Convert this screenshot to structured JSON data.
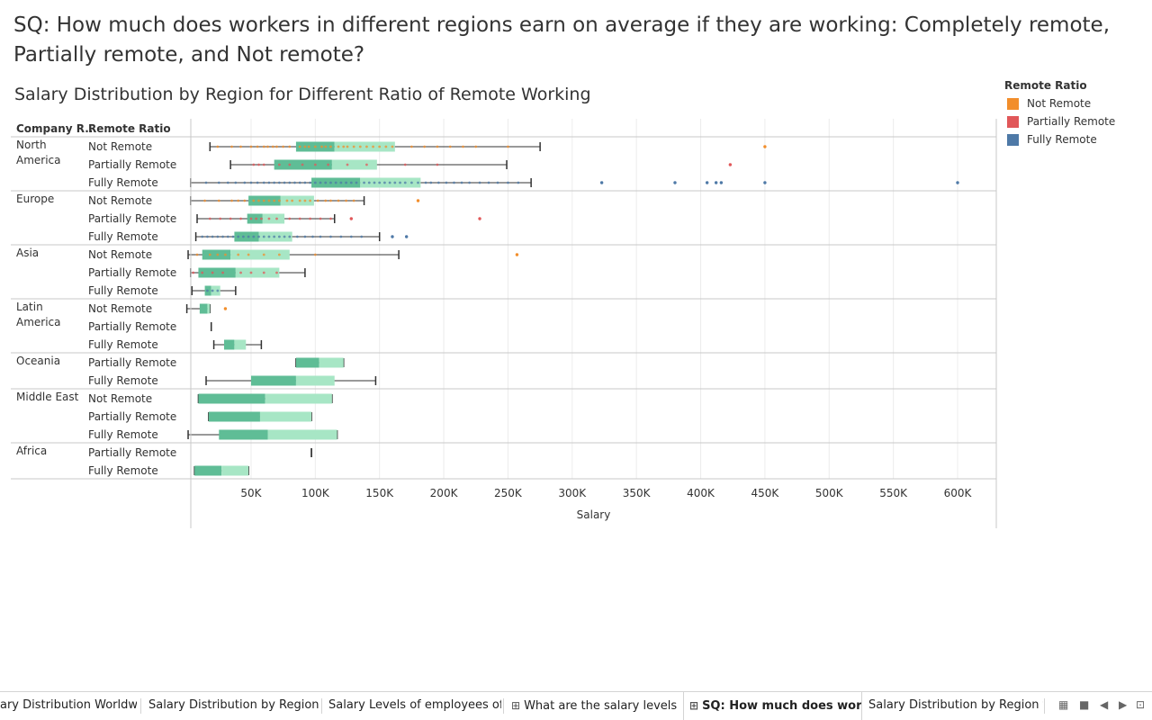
{
  "page": {
    "question": "SQ: How much does workers in different regions earn on average if they are working: Completely remote, Partially remote, and Not remote?",
    "sheet_title": "Salary Distribution by Region for Different Ratio of Remote Working"
  },
  "legend": {
    "title": "Remote Ratio",
    "items": [
      {
        "label": "Not Remote",
        "color": "#f28e2b"
      },
      {
        "label": "Partially Remote",
        "color": "#e15759"
      },
      {
        "label": "Fully Remote",
        "color": "#4e79a7"
      }
    ]
  },
  "colors": {
    "box_lower": "#5fbd96",
    "box_upper": "#a7e6c5",
    "whisker": "#333333",
    "grid": "#ececec",
    "separator": "#c8c8c8"
  },
  "chart_data": {
    "type": "boxplot",
    "title": "Salary Distribution by Region for Different Ratio of Remote Working",
    "row_headers": [
      "Company R..",
      "Remote Ratio"
    ],
    "xlabel": "Salary",
    "xlim": [
      0,
      630000
    ],
    "xticks": [
      50000,
      100000,
      150000,
      200000,
      250000,
      300000,
      350000,
      400000,
      450000,
      500000,
      550000,
      600000
    ],
    "xtick_labels": [
      "50K",
      "100K",
      "150K",
      "200K",
      "250K",
      "300K",
      "350K",
      "400K",
      "450K",
      "500K",
      "550K",
      "600K"
    ],
    "grid": true,
    "regions": [
      {
        "name": "North America",
        "rows": [
          {
            "ratio": "Not Remote",
            "min": 18000,
            "q1": 85000,
            "median": 115000,
            "q3": 162000,
            "max": 275000,
            "points": [
              24000,
              35000,
              42000,
              50000,
              55000,
              60000,
              63000,
              67000,
              70000,
              75000,
              80000,
              88000,
              92000,
              95000,
              100000,
              105000,
              108000,
              112000,
              118000,
              122000,
              125000,
              130000,
              135000,
              140000,
              145000,
              150000,
              155000,
              160000,
              175000,
              185000,
              195000,
              205000,
              215000,
              225000,
              250000
            ],
            "outliers": [
              450000
            ]
          },
          {
            "ratio": "Partially Remote",
            "min": 34000,
            "q1": 68000,
            "median": 113000,
            "q3": 148000,
            "max": 249000,
            "points": [
              52000,
              56000,
              60000,
              72000,
              80000,
              90000,
              100000,
              110000,
              125000,
              140000,
              170000,
              195000
            ],
            "outliers": [
              423000
            ]
          },
          {
            "ratio": "Fully Remote",
            "min": 3000,
            "q1": 97000,
            "median": 135000,
            "q3": 182000,
            "max": 268000,
            "points": [
              15000,
              25000,
              32000,
              38000,
              45000,
              50000,
              55000,
              60000,
              64000,
              68000,
              72000,
              76000,
              80000,
              84000,
              88000,
              92000,
              96000,
              100000,
              104000,
              108000,
              112000,
              116000,
              120000,
              124000,
              128000,
              132000,
              138000,
              142000,
              146000,
              150000,
              154000,
              158000,
              162000,
              166000,
              170000,
              175000,
              180000,
              186000,
              190000,
              196000,
              202000,
              208000,
              214000,
              220000,
              228000,
              235000,
              242000,
              250000,
              258000
            ],
            "outliers": [
              323000,
              380000,
              405000,
              412000,
              416000,
              450000,
              600000
            ]
          }
        ]
      },
      {
        "name": "Europe",
        "rows": [
          {
            "ratio": "Not Remote",
            "min": 3000,
            "q1": 48000,
            "median": 73000,
            "q3": 99000,
            "max": 138000,
            "points": [
              14000,
              25000,
              35000,
              40000,
              45000,
              52000,
              56000,
              60000,
              64000,
              68000,
              72000,
              78000,
              82000,
              88000,
              92000,
              96000,
              102000,
              108000,
              112000,
              118000,
              124000,
              130000
            ],
            "outliers": [
              180000
            ]
          },
          {
            "ratio": "Partially Remote",
            "min": 8000,
            "q1": 47000,
            "median": 59000,
            "q3": 76000,
            "max": 115000,
            "points": [
              18000,
              26000,
              34000,
              42000,
              50000,
              54000,
              58000,
              64000,
              70000,
              80000,
              88000,
              96000,
              104000,
              112000
            ],
            "outliers": [
              128000,
              228000
            ]
          },
          {
            "ratio": "Fully Remote",
            "min": 7000,
            "q1": 37000,
            "median": 56000,
            "q3": 82000,
            "max": 150000,
            "points": [
              12000,
              16000,
              20000,
              24000,
              28000,
              32000,
              36000,
              40000,
              44000,
              48000,
              52000,
              56000,
              60000,
              64000,
              68000,
              72000,
              76000,
              80000,
              86000,
              92000,
              98000,
              104000,
              112000,
              120000,
              128000,
              136000
            ],
            "outliers": [
              160000,
              171000
            ]
          }
        ]
      },
      {
        "name": "Asia",
        "rows": [
          {
            "ratio": "Not Remote",
            "min": 1000,
            "q1": 12000,
            "median": 34000,
            "q3": 80000,
            "max": 165000,
            "points": [
              8000,
              18000,
              24000,
              30000,
              40000,
              48000,
              60000,
              72000,
              100000
            ],
            "outliers": [
              257000
            ]
          },
          {
            "ratio": "Partially Remote",
            "min": 3000,
            "q1": 9000,
            "median": 38000,
            "q3": 72000,
            "max": 92000,
            "points": [
              5000,
              12000,
              20000,
              28000,
              42000,
              50000,
              60000,
              70000
            ],
            "outliers": []
          },
          {
            "ratio": "Fully Remote",
            "min": 4000,
            "q1": 14000,
            "median": 19000,
            "q3": 26000,
            "max": 38000,
            "points": [
              16000,
              20000,
              24000
            ],
            "outliers": []
          }
        ]
      },
      {
        "name": "Latin America",
        "rows": [
          {
            "ratio": "Not Remote",
            "min": 0,
            "q1": 10000,
            "median": 16000,
            "q3": 18000,
            "max": 18000,
            "points": [],
            "outliers": [
              30000
            ]
          },
          {
            "ratio": "Partially Remote",
            "min": 19000,
            "q1": 19000,
            "median": 19000,
            "q3": 19000,
            "max": 19000,
            "points": [],
            "outliers": []
          },
          {
            "ratio": "Fully Remote",
            "min": 21000,
            "q1": 29000,
            "median": 37000,
            "q3": 46000,
            "max": 58000,
            "points": [],
            "outliers": []
          }
        ]
      },
      {
        "name": "Oceania",
        "rows": [
          {
            "ratio": "Partially Remote",
            "min": 85000,
            "q1": 85000,
            "median": 103000,
            "q3": 122000,
            "max": 122000,
            "points": [],
            "outliers": []
          },
          {
            "ratio": "Fully Remote",
            "min": 15000,
            "q1": 50000,
            "median": 85000,
            "q3": 115000,
            "max": 147000,
            "points": [],
            "outliers": []
          }
        ]
      },
      {
        "name": "Middle East",
        "rows": [
          {
            "ratio": "Not Remote",
            "min": 9000,
            "q1": 9000,
            "median": 61000,
            "q3": 113000,
            "max": 113000,
            "points": [],
            "outliers": []
          },
          {
            "ratio": "Partially Remote",
            "min": 17000,
            "q1": 17000,
            "median": 57000,
            "q3": 97000,
            "max": 97000,
            "points": [],
            "outliers": []
          },
          {
            "ratio": "Fully Remote",
            "min": 1000,
            "q1": 25000,
            "median": 63000,
            "q3": 117000,
            "max": 117000,
            "points": [],
            "outliers": []
          }
        ]
      },
      {
        "name": "Africa",
        "rows": [
          {
            "ratio": "Partially Remote",
            "min": 97000,
            "q1": 97000,
            "median": 97000,
            "q3": 97000,
            "max": 97000,
            "points": [],
            "outliers": []
          },
          {
            "ratio": "Fully Remote",
            "min": 6000,
            "q1": 6000,
            "median": 27000,
            "q3": 48000,
            "max": 48000,
            "points": [],
            "outliers": []
          }
        ]
      }
    ]
  },
  "tabs": [
    {
      "label": "ary Distribution Worldwide",
      "icon": "",
      "active": false
    },
    {
      "label": "Salary Distribution by Region for...",
      "icon": "",
      "active": false
    },
    {
      "label": "Salary Levels of employees of Co...",
      "icon": "",
      "active": false
    },
    {
      "label": "What are the salary levels of ...",
      "icon": "dashboard-icon",
      "active": false
    },
    {
      "label": "SQ: How much does worker...",
      "icon": "dashboard-icon",
      "active": true
    },
    {
      "label": "Salary Distribution by Region for...",
      "icon": "",
      "active": false
    }
  ]
}
